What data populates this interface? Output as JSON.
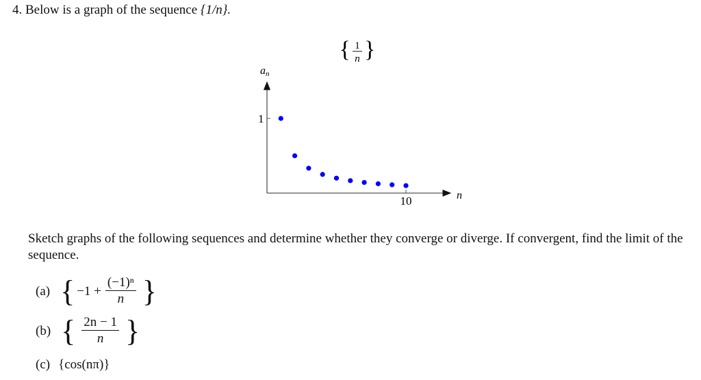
{
  "question": {
    "number": "4.",
    "text": "Below is a graph of the sequence",
    "sequence": "{1/n}."
  },
  "chart_data": {
    "type": "scatter",
    "title": {
      "numerator": "1",
      "denominator": "n"
    },
    "xlabel": "n",
    "ylabel": "a_n",
    "ylabel_base": "a",
    "ylabel_sub": "n",
    "x_ticks": [
      "10"
    ],
    "y_ticks": [
      "1"
    ],
    "xlim": [
      0,
      13
    ],
    "ylim": [
      0,
      1.5
    ],
    "grid": false,
    "marker_color": "#0000ff",
    "x": [
      1,
      2,
      3,
      4,
      5,
      6,
      7,
      8,
      9,
      10
    ],
    "y": [
      1,
      0.5,
      0.3333,
      0.25,
      0.2,
      0.1667,
      0.1429,
      0.125,
      0.1111,
      0.1
    ]
  },
  "instructions": "Sketch graphs of the following sequences and determine whether they converge or diverge. If convergent, find the limit of the sequence.",
  "items": [
    {
      "label": "(a)",
      "prefix": "−1 +",
      "numerator": "(−1)ⁿ",
      "denominator": "n"
    },
    {
      "label": "(b)",
      "numerator": "2n − 1",
      "denominator": "n"
    },
    {
      "label": "(c)",
      "expr": "{cos(nπ)}"
    }
  ]
}
